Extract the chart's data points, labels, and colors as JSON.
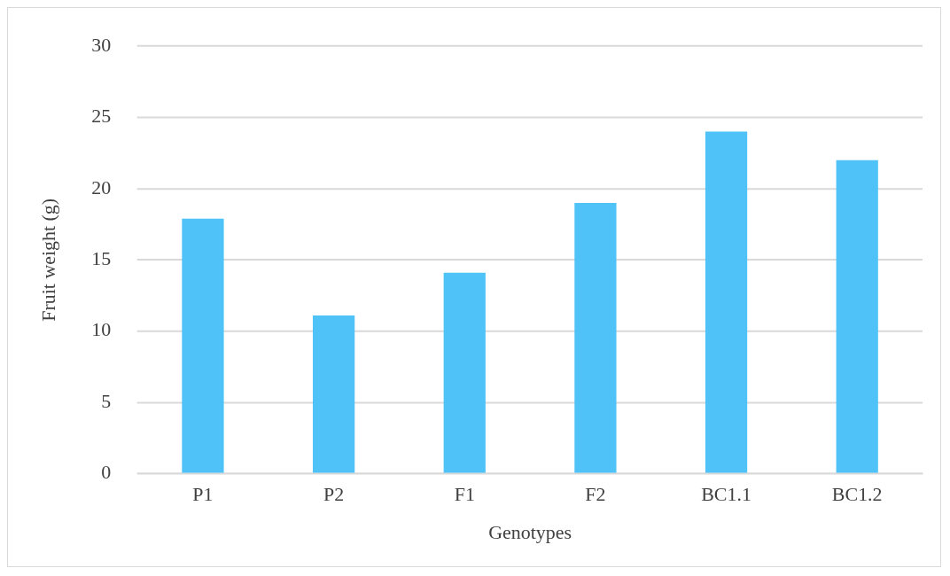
{
  "chart_data": {
    "type": "bar",
    "xlabel": "Genotypes",
    "ylabel": "Fruit weight (g)",
    "categories": [
      "P1",
      "P2",
      "F1",
      "F2",
      "BC1.1",
      "BC1.2"
    ],
    "values": [
      17.9,
      11.1,
      14.1,
      19.0,
      24.0,
      22.0
    ],
    "color": "#4fc3f7",
    "ylim": [
      0,
      30
    ],
    "yticks": [
      0,
      5,
      10,
      15,
      20,
      25,
      30
    ],
    "grid": "y",
    "legend": false
  }
}
